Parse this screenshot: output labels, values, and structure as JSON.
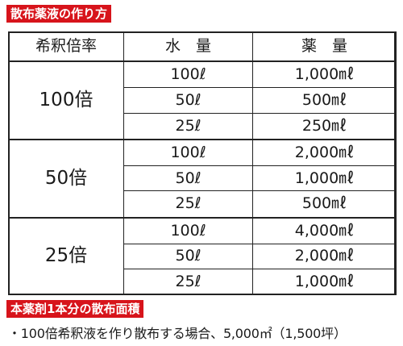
{
  "heading1": "散布薬液の作り方",
  "table": {
    "headers": [
      "希釈倍率",
      "水　量",
      "薬　量"
    ],
    "groups": [
      {
        "ratio": "100倍",
        "rows": [
          {
            "water": "100ℓ",
            "medicine": "1,000㎖"
          },
          {
            "water": "50ℓ",
            "medicine": "500㎖"
          },
          {
            "water": "25ℓ",
            "medicine": "250㎖"
          }
        ]
      },
      {
        "ratio": "50倍",
        "rows": [
          {
            "water": "100ℓ",
            "medicine": "2,000㎖"
          },
          {
            "water": "50ℓ",
            "medicine": "1,000㎖"
          },
          {
            "water": "25ℓ",
            "medicine": "500㎖"
          }
        ]
      },
      {
        "ratio": "25倍",
        "rows": [
          {
            "water": "100ℓ",
            "medicine": "4,000㎖"
          },
          {
            "water": "50ℓ",
            "medicine": "2,000㎖"
          },
          {
            "water": "25ℓ",
            "medicine": "1,000㎖"
          }
        ]
      }
    ]
  },
  "heading2": "本薬剤1本分の散布面積",
  "note": "・100倍希釈液を作り散布する場合、5,000㎡（1,500坪）"
}
